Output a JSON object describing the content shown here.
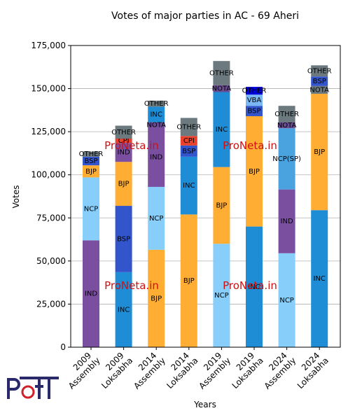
{
  "chart_data": {
    "type": "stacked_bar",
    "title": "Votes of major parties in AC - 69 Aheri",
    "x_label": "Years",
    "y_label": "Votes",
    "ylim": [
      0,
      175000
    ],
    "yticks": [
      {
        "value": 0,
        "label": "0"
      },
      {
        "value": 25000,
        "label": "25,000"
      },
      {
        "value": 50000,
        "label": "50,000"
      },
      {
        "value": 75000,
        "label": "75,000"
      },
      {
        "value": 100000,
        "label": "100,000"
      },
      {
        "value": 125000,
        "label": "125,000"
      },
      {
        "value": 150000,
        "label": "150,000"
      },
      {
        "value": 175000,
        "label": "175,000"
      }
    ],
    "grid": true,
    "watermark": "ProNeta.in",
    "stacks": [
      {
        "category": "2009 Assembly",
        "segments": [
          {
            "name": "IND",
            "value": 62000,
            "color": "#7b4fa0"
          },
          {
            "name": "NCP",
            "value": 36500,
            "color": "#87cefa"
          },
          {
            "name": "BJP",
            "value": 7000,
            "color": "#ffad33"
          },
          {
            "name": "BSP",
            "value": 5000,
            "color": "#3355cc"
          },
          {
            "name": "OTHER",
            "value": 3000,
            "color": "#6c7a80"
          }
        ]
      },
      {
        "category": "2009 Loksabha",
        "segments": [
          {
            "name": "INC",
            "value": 43500,
            "color": "#1f8dd6"
          },
          {
            "name": "BSP",
            "value": 38500,
            "color": "#3355cc"
          },
          {
            "name": "BJP",
            "value": 25500,
            "color": "#ffad33"
          },
          {
            "name": "IND",
            "value": 11000,
            "color": "#7b4fa0"
          },
          {
            "name": "CPI",
            "value": 2500,
            "color": "#e8412c"
          },
          {
            "name": "OTHER",
            "value": 7500,
            "color": "#6c7a80"
          }
        ]
      },
      {
        "category": "2014 Assembly",
        "segments": [
          {
            "name": "BJP",
            "value": 56500,
            "color": "#ffad33"
          },
          {
            "name": "NCP",
            "value": 36500,
            "color": "#87cefa"
          },
          {
            "name": "IND",
            "value": 34500,
            "color": "#7b4fa0"
          },
          {
            "name": "NOTA",
            "value": 3000,
            "color": "#6a4c93"
          },
          {
            "name": "INC",
            "value": 9000,
            "color": "#1f8dd6"
          },
          {
            "name": "OTHER",
            "value": 3500,
            "color": "#6c7a80"
          }
        ]
      },
      {
        "category": "2014 Loksabha",
        "segments": [
          {
            "name": "BJP",
            "value": 77000,
            "color": "#ffad33"
          },
          {
            "name": "INC",
            "value": 33500,
            "color": "#1f8dd6"
          },
          {
            "name": "BSP",
            "value": 6500,
            "color": "#3355cc"
          },
          {
            "name": "CPI",
            "value": 5500,
            "color": "#e8412c"
          },
          {
            "name": "OTHER",
            "value": 10500,
            "color": "#6c7a80"
          }
        ]
      },
      {
        "category": "2019 Assembly",
        "segments": [
          {
            "name": "NCP",
            "value": 60000,
            "color": "#87cefa"
          },
          {
            "name": "BJP",
            "value": 44500,
            "color": "#ffad33"
          },
          {
            "name": "INC",
            "value": 43500,
            "color": "#1f8dd6"
          },
          {
            "name": "NOTA",
            "value": 4000,
            "color": "#6a4c93"
          },
          {
            "name": "OTHER",
            "value": 14000,
            "color": "#6c7a80"
          }
        ]
      },
      {
        "category": "2019 Loksabha",
        "segments": [
          {
            "name": "INC",
            "value": 70000,
            "color": "#1f8dd6"
          },
          {
            "name": "BJP",
            "value": 64000,
            "color": "#ffad33"
          },
          {
            "name": "BSP",
            "value": 6000,
            "color": "#3355cc"
          },
          {
            "name": "VBA",
            "value": 6500,
            "color": "#7ab8f5"
          },
          {
            "name": "OTHER",
            "value": 4500,
            "color": "#0000dd"
          }
        ]
      },
      {
        "category": "2024 Assembly",
        "segments": [
          {
            "name": "NCP",
            "value": 54500,
            "color": "#87cefa"
          },
          {
            "name": "IND",
            "value": 37000,
            "color": "#7b4fa0"
          },
          {
            "name": "NCP(SP)",
            "value": 35500,
            "color": "#4aa3df"
          },
          {
            "name": "NOTA",
            "value": 3500,
            "color": "#6a4c93"
          },
          {
            "name": "OTHER",
            "value": 9500,
            "color": "#6c7a80"
          }
        ]
      },
      {
        "category": "2024 Loksabha",
        "segments": [
          {
            "name": "INC",
            "value": 79500,
            "color": "#1f8dd6"
          },
          {
            "name": "BJP",
            "value": 67500,
            "color": "#ffad33"
          },
          {
            "name": "NOTA",
            "value": 4500,
            "color": "#6c7a80"
          },
          {
            "name": "BSP",
            "value": 5500,
            "color": "#3355cc"
          },
          {
            "name": "OTHER",
            "value": 6500,
            "color": "#6c7a80"
          }
        ]
      }
    ]
  }
}
